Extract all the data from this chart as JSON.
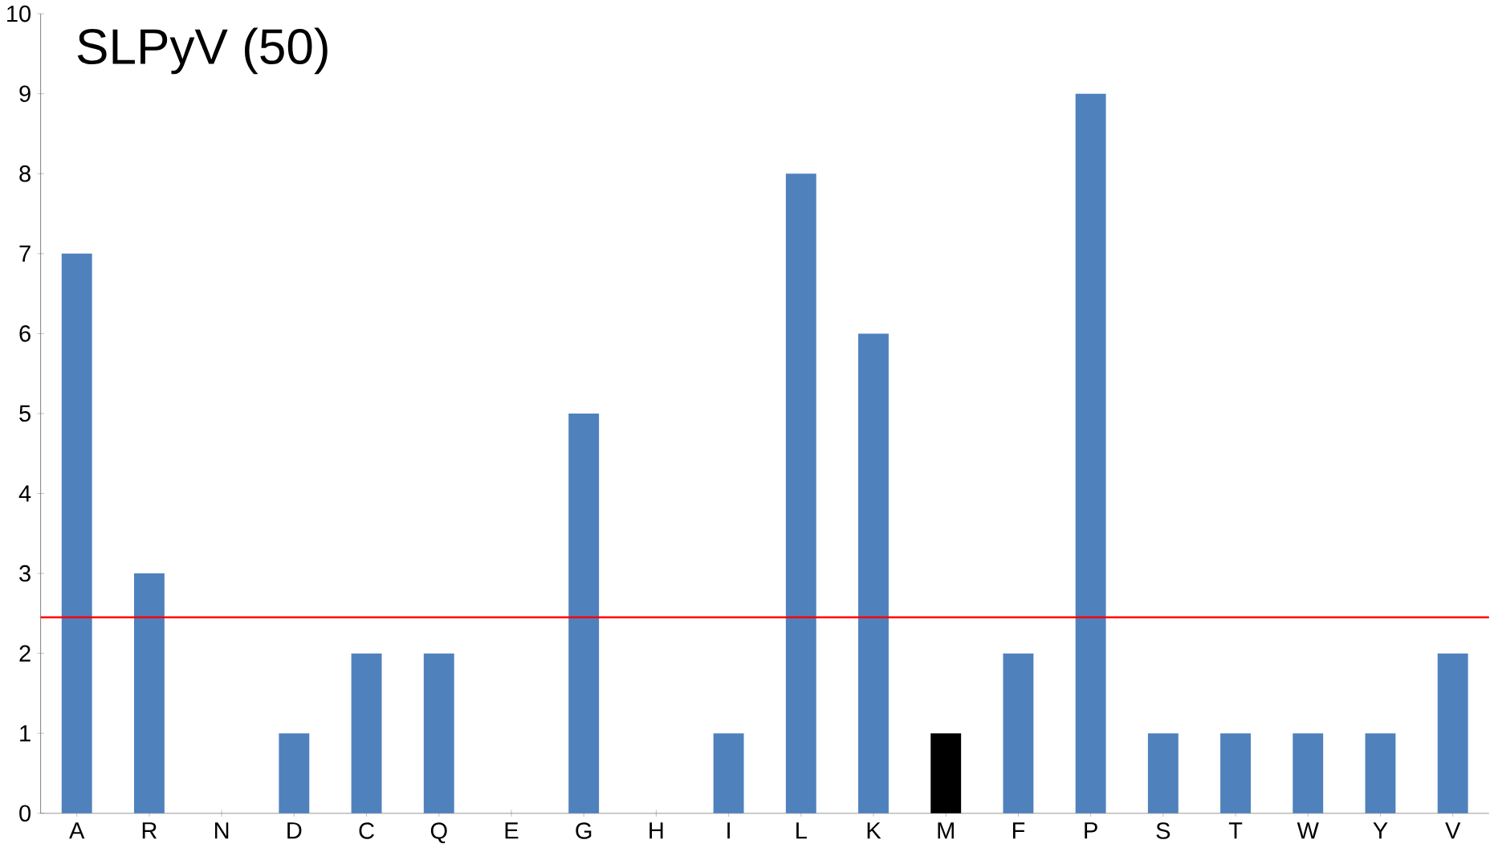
{
  "chart_data": {
    "type": "bar",
    "title": "SLPyV (50)",
    "categories": [
      "A",
      "R",
      "N",
      "D",
      "C",
      "Q",
      "E",
      "G",
      "H",
      "I",
      "L",
      "K",
      "M",
      "F",
      "P",
      "S",
      "T",
      "W",
      "Y",
      "V"
    ],
    "values": [
      7,
      3,
      0,
      1,
      2,
      2,
      0,
      5,
      0,
      1,
      8,
      6,
      1,
      2,
      9,
      1,
      1,
      1,
      1,
      2
    ],
    "colors": [
      "#4f81bd",
      "#4f81bd",
      "#4f81bd",
      "#4f81bd",
      "#4f81bd",
      "#4f81bd",
      "#4f81bd",
      "#4f81bd",
      "#4f81bd",
      "#4f81bd",
      "#4f81bd",
      "#4f81bd",
      "#000000",
      "#4f81bd",
      "#4f81bd",
      "#4f81bd",
      "#4f81bd",
      "#4f81bd",
      "#4f81bd",
      "#4f81bd"
    ],
    "ylim": [
      0,
      10
    ],
    "yticks": [
      0,
      1,
      2,
      3,
      4,
      5,
      6,
      7,
      8,
      9,
      10
    ],
    "ref_lines": [
      {
        "axis": "y",
        "value": 2.45,
        "color": "#ff0000"
      }
    ]
  }
}
